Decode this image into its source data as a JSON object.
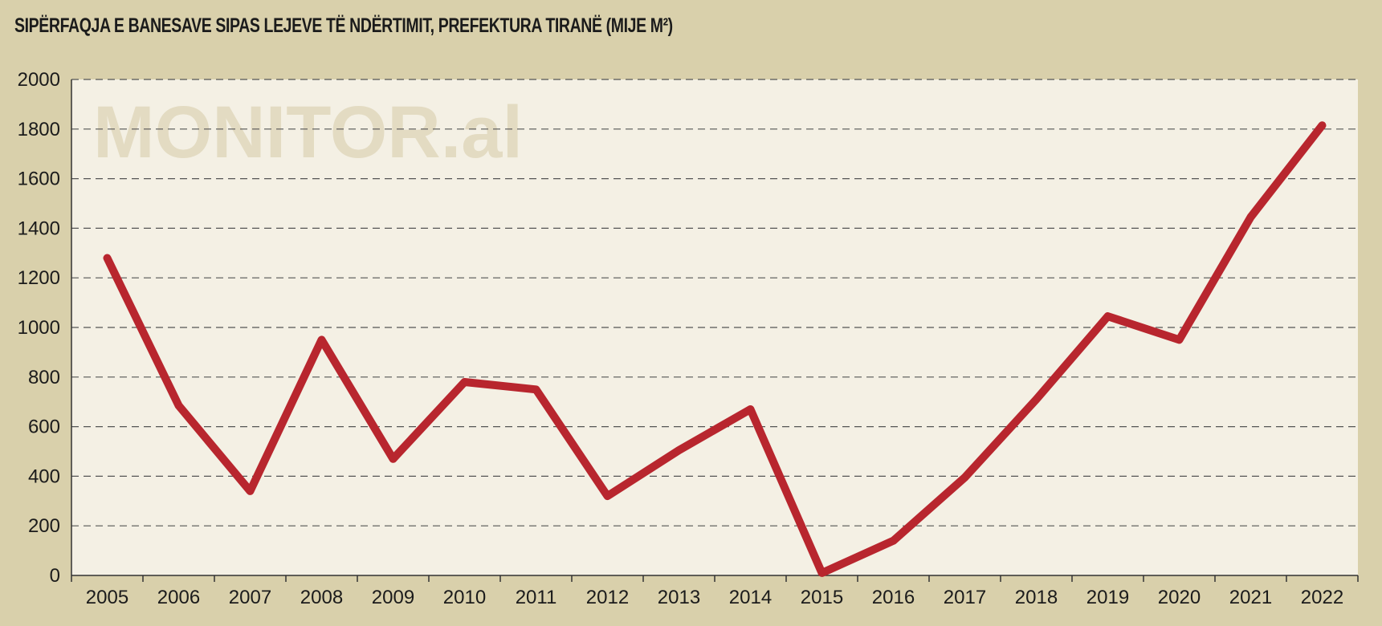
{
  "chart_data": {
    "type": "line",
    "title": "SIPËRFAQJA E BANESAVE SIPAS LEJEVE TË NDËRTIMIT, PREFEKTURA TIRANË (MIJE M²)",
    "watermark": "MONITOR.al",
    "categories": [
      "2005",
      "2006",
      "2007",
      "2008",
      "2009",
      "2010",
      "2011",
      "2012",
      "2013",
      "2014",
      "2015",
      "2016",
      "2017",
      "2018",
      "2019",
      "2020",
      "2021",
      "2022"
    ],
    "series": [
      {
        "values": [
          1280,
          685,
          340,
          950,
          470,
          780,
          750,
          320,
          505,
          670,
          10,
          140,
          395,
          710,
          1045,
          950,
          1445,
          1815
        ],
        "color": "#b8262e"
      }
    ],
    "ylim": [
      0,
      2000
    ],
    "yticks": [
      0,
      200,
      400,
      600,
      800,
      1000,
      1200,
      1400,
      1600,
      1800,
      2000
    ],
    "grid": true,
    "colors": {
      "background": "#d9d0ab",
      "plot_area": "#f4f0e4",
      "line": "#b8262e"
    }
  }
}
